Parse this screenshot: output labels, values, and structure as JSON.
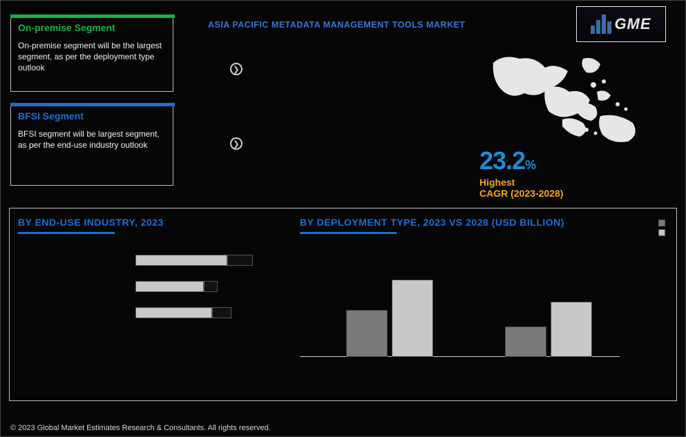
{
  "colors": {
    "accent_green": "#18b24a",
    "accent_blue": "#1a6fd6",
    "title_blue": "#3b74d4",
    "cagr_blue": "#1f8bd6",
    "highlight_orange": "#f5a623",
    "map_fill": "#e6e6e6",
    "bar_light": "#c8c8c8",
    "bar_dark": "#7a7a7a",
    "axis": "#d0d0d0",
    "bg": "#060606"
  },
  "logo": {
    "text": "GME"
  },
  "title": "ASIA PACIFIC METADATA MANAGEMENT TOOLS MARKET",
  "card1": {
    "title": "On-premise Segment",
    "body": "On-premise segment will be the largest segment, as per the deployment type outlook"
  },
  "card2": {
    "title": "BFSI Segment",
    "body": "BFSI segment will be largest segment, as per the end-use industry outlook"
  },
  "cagr": {
    "value": "23.2",
    "pct": "%",
    "label1": "Highest",
    "label2": "CAGR (2023-2028)"
  },
  "end_use": {
    "title": "BY  END-USE INDUSTRY, 2023",
    "rows": [
      {
        "label": "",
        "light_pct": 78,
        "dark_start": 78,
        "dark_end": 100
      },
      {
        "label": "",
        "light_pct": 58,
        "dark_start": 58,
        "dark_end": 70
      },
      {
        "label": "",
        "light_pct": 65,
        "dark_start": 65,
        "dark_end": 82
      }
    ]
  },
  "deployment": {
    "title": "BY DEPLOYMENT TYPE, 2023 VS 2028 (USD BILLION)",
    "legend": [
      {
        "label": "",
        "color": "#7a7a7a"
      },
      {
        "label": "",
        "color": "#c8c8c8"
      }
    ],
    "groups": [
      {
        "category": "",
        "bar_a_h": 68,
        "bar_b_h": 112
      },
      {
        "category": "",
        "bar_a_h": 44,
        "bar_b_h": 80
      }
    ],
    "bar_a_color": "#7a7a7a",
    "bar_b_color": "#c8c8c8",
    "max_h": 140
  },
  "copyright": "© 2023 Global Market Estimates Research & Consultants. All rights reserved."
}
